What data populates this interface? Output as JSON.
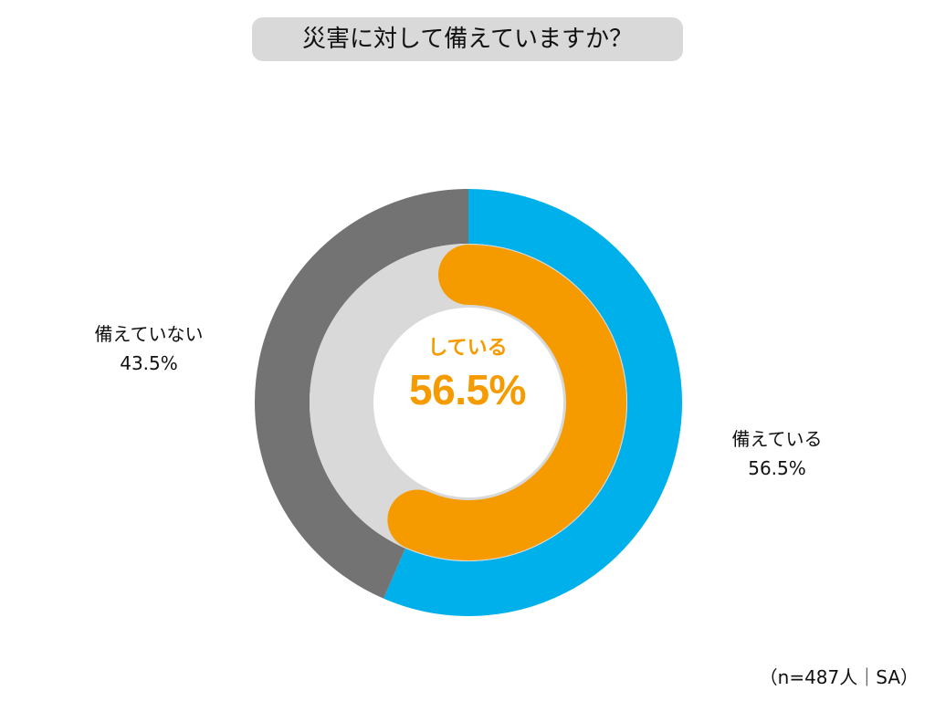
{
  "title": "災害に対して備えていますか？",
  "sample_note": "（n=487人｜SA）",
  "labels": {
    "prepared": {
      "name": "備えている",
      "value": "56.5%"
    },
    "not_prepared": {
      "name": "備えていない",
      "value": "43.5%"
    }
  },
  "center": {
    "caption": "している",
    "value": "56.5%"
  },
  "colors": {
    "prepared": "#00b0ea",
    "not_prepared": "#737373",
    "center_progress": "#f59b00",
    "center_track": "#d9d9d9",
    "title_background": "#d9d9d9"
  },
  "chart_data": {
    "type": "pie",
    "outer_ring": {
      "categories": [
        "備えている",
        "備えていない"
      ],
      "values": [
        56.5,
        43.5
      ],
      "unit": "%"
    },
    "inner_gauge": {
      "label": "している",
      "value": 56.5,
      "unit": "%"
    },
    "sample_size": 487,
    "response_type": "SA"
  }
}
